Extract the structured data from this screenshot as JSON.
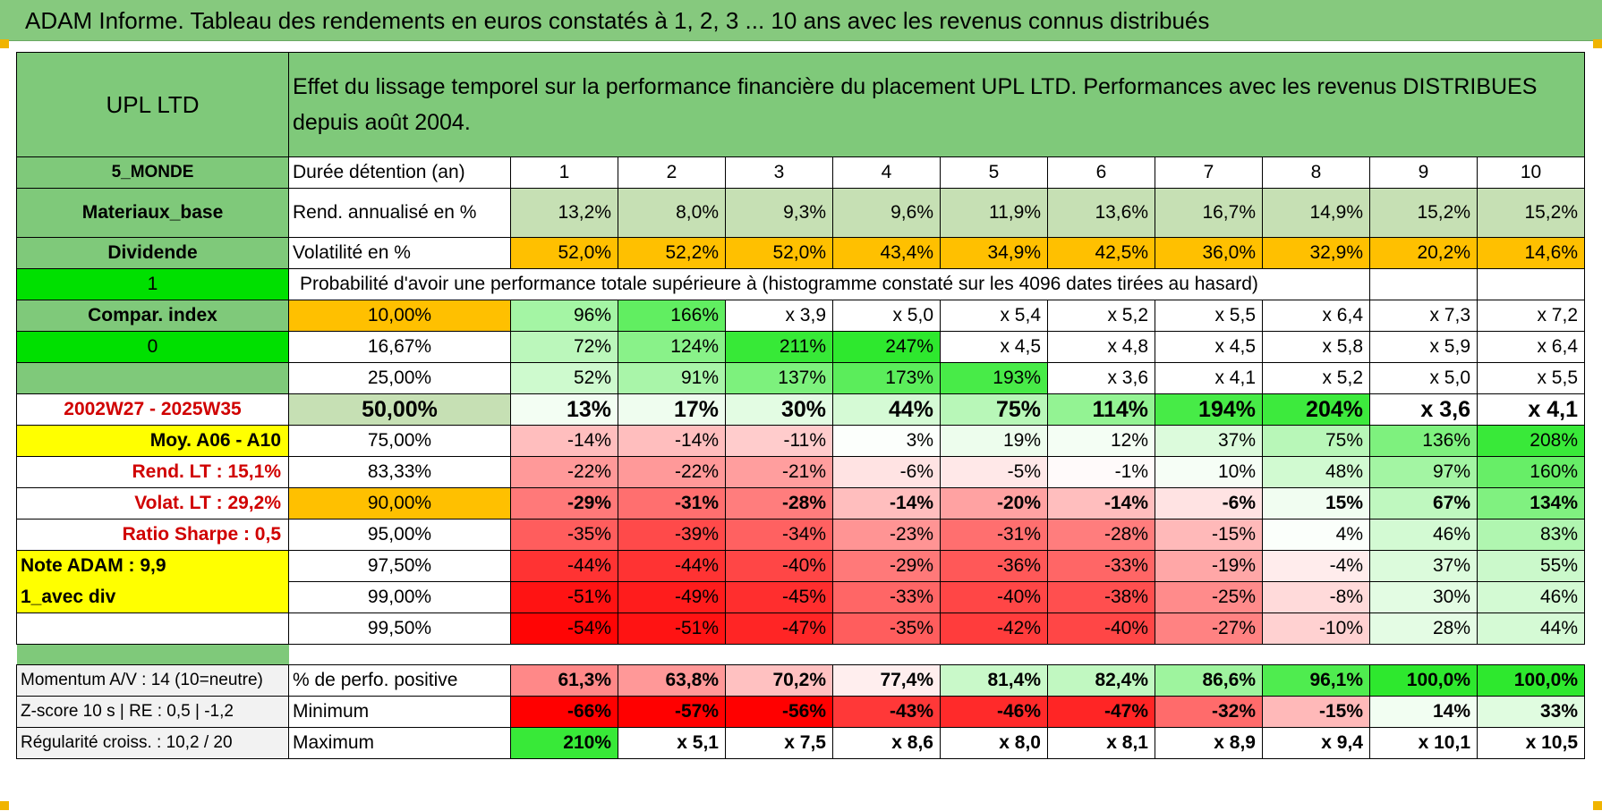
{
  "title": "ADAM Informe. Tableau des rendements en euros constatés à 1, 2, 3 ... 10 ans avec les revenus connus distribués",
  "header": {
    "name": "UPL LTD",
    "description": "Effet du lissage temporel sur la performance financière du placement UPL LTD. Performances avec les revenus DISTRIBUES depuis août 2004."
  },
  "side": {
    "region": "5_MONDE",
    "sector": "Materiaux_base",
    "type": "Dividende",
    "flag1": "1",
    "compar": "Compar. index",
    "flag0": "0",
    "period": "2002W27 - 2025W35",
    "moy": "Moy. A06 - A10",
    "rend_lt": "Rend. LT :    15,1%",
    "volat_lt": "Volat. LT :    29,2%",
    "sharpe": "Ratio Sharpe :     0,5",
    "note": "Note ADAM : 9,9",
    "avec_div": "1_avec div"
  },
  "rows": {
    "duree_label": "Durée détention (an)",
    "years": [
      "1",
      "2",
      "3",
      "4",
      "5",
      "6",
      "7",
      "8",
      "9",
      "10"
    ],
    "rend_label": "Rend. annualisé en %",
    "rend": [
      "13,2%",
      "8,0%",
      "9,3%",
      "9,6%",
      "11,9%",
      "13,6%",
      "16,7%",
      "14,9%",
      "15,2%",
      "15,2%"
    ],
    "vol_label": "Volatilité en %",
    "vol": [
      "52,0%",
      "52,2%",
      "52,0%",
      "43,4%",
      "34,9%",
      "42,5%",
      "36,0%",
      "32,9%",
      "20,2%",
      "14,6%"
    ],
    "prob_label": "Probabilité d'avoir une performance totale supérieure à (histogramme constaté sur les 4096 dates tirées au hasard)"
  },
  "quantiles": [
    {
      "p": "10,00%",
      "v": [
        "96%",
        "166%",
        "x 3,9",
        "x 5,0",
        "x 5,4",
        "x 5,2",
        "x 5,5",
        "x 6,4",
        "x 7,3",
        "x 7,2"
      ]
    },
    {
      "p": "16,67%",
      "v": [
        "72%",
        "124%",
        "211%",
        "247%",
        "x 4,5",
        "x 4,8",
        "x 4,5",
        "x 5,8",
        "x 5,9",
        "x 6,4"
      ]
    },
    {
      "p": "25,00%",
      "v": [
        "52%",
        "91%",
        "137%",
        "173%",
        "193%",
        "x 3,6",
        "x 4,1",
        "x 5,2",
        "x 5,0",
        "x 5,5"
      ]
    },
    {
      "p": "50,00%",
      "v": [
        "13%",
        "17%",
        "30%",
        "44%",
        "75%",
        "114%",
        "194%",
        "204%",
        "x 3,6",
        "x 4,1"
      ]
    },
    {
      "p": "75,00%",
      "v": [
        "-14%",
        "-14%",
        "-11%",
        "3%",
        "19%",
        "12%",
        "37%",
        "75%",
        "136%",
        "208%"
      ]
    },
    {
      "p": "83,33%",
      "v": [
        "-22%",
        "-22%",
        "-21%",
        "-6%",
        "-5%",
        "-1%",
        "10%",
        "48%",
        "97%",
        "160%"
      ]
    },
    {
      "p": "90,00%",
      "v": [
        "-29%",
        "-31%",
        "-28%",
        "-14%",
        "-20%",
        "-14%",
        "-6%",
        "15%",
        "67%",
        "134%"
      ]
    },
    {
      "p": "95,00%",
      "v": [
        "-35%",
        "-39%",
        "-34%",
        "-23%",
        "-31%",
        "-28%",
        "-15%",
        "4%",
        "46%",
        "83%"
      ]
    },
    {
      "p": "97,50%",
      "v": [
        "-44%",
        "-44%",
        "-40%",
        "-29%",
        "-36%",
        "-33%",
        "-19%",
        "-4%",
        "37%",
        "55%"
      ]
    },
    {
      "p": "99,00%",
      "v": [
        "-51%",
        "-49%",
        "-45%",
        "-33%",
        "-40%",
        "-38%",
        "-25%",
        "-8%",
        "30%",
        "46%"
      ]
    },
    {
      "p": "99,50%",
      "v": [
        "-54%",
        "-51%",
        "-47%",
        "-35%",
        "-42%",
        "-40%",
        "-27%",
        "-10%",
        "28%",
        "44%"
      ]
    }
  ],
  "bottom": [
    {
      "side": "Momentum A/V : 14 (10=neutre)",
      "label": "% de perfo. positive",
      "v": [
        "61,3%",
        "63,8%",
        "70,2%",
        "77,4%",
        "81,4%",
        "82,4%",
        "86,6%",
        "96,1%",
        "100,0%",
        "100,0%"
      ]
    },
    {
      "side": "Z-score 10 s | RE : 0,5 | -1,2",
      "label": "Minimum",
      "v": [
        "-66%",
        "-57%",
        "-56%",
        "-43%",
        "-46%",
        "-47%",
        "-32%",
        "-15%",
        "14%",
        "33%"
      ]
    },
    {
      "side": "Régularité croiss. : 10,2 / 20",
      "label": "Maximum",
      "v": [
        "210%",
        "x 5,1",
        "x 7,5",
        "x 8,6",
        "x 8,0",
        "x 8,1",
        "x 8,9",
        "x 9,4",
        "x 10,1",
        "x 10,5"
      ]
    }
  ],
  "colors": {
    "header_green": "#7fc97a",
    "rend_green": "#c6e0b4",
    "vol_orange": "#ffc000",
    "flag_green": "#00e000",
    "highlight_yellow": "#ffff00",
    "label_red": "#d00000"
  }
}
